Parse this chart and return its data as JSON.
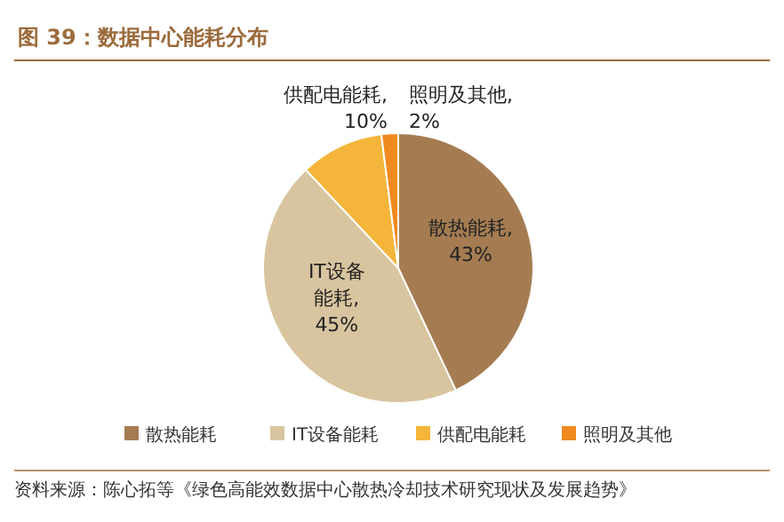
{
  "chart_data": {
    "type": "pie",
    "title": "图 39：数据中心能耗分布",
    "categories": [
      "散热能耗",
      "IT设备能耗",
      "供配电能耗",
      "照明及其他"
    ],
    "values": [
      43,
      45,
      10,
      2
    ],
    "colors": [
      "#a57c52",
      "#d8c59f",
      "#f4b53a",
      "#f08a1e"
    ],
    "value_labels": [
      "散热能耗,43%",
      "IT设备能耗,45%",
      "供配电能耗,10%",
      "照明及其他,2%"
    ],
    "legend": "bottom",
    "annotations": [
      "资料来源：陈心拓等《绿色高能效数据中心散热冷却技术研究现状及发展趋势》"
    ]
  }
}
